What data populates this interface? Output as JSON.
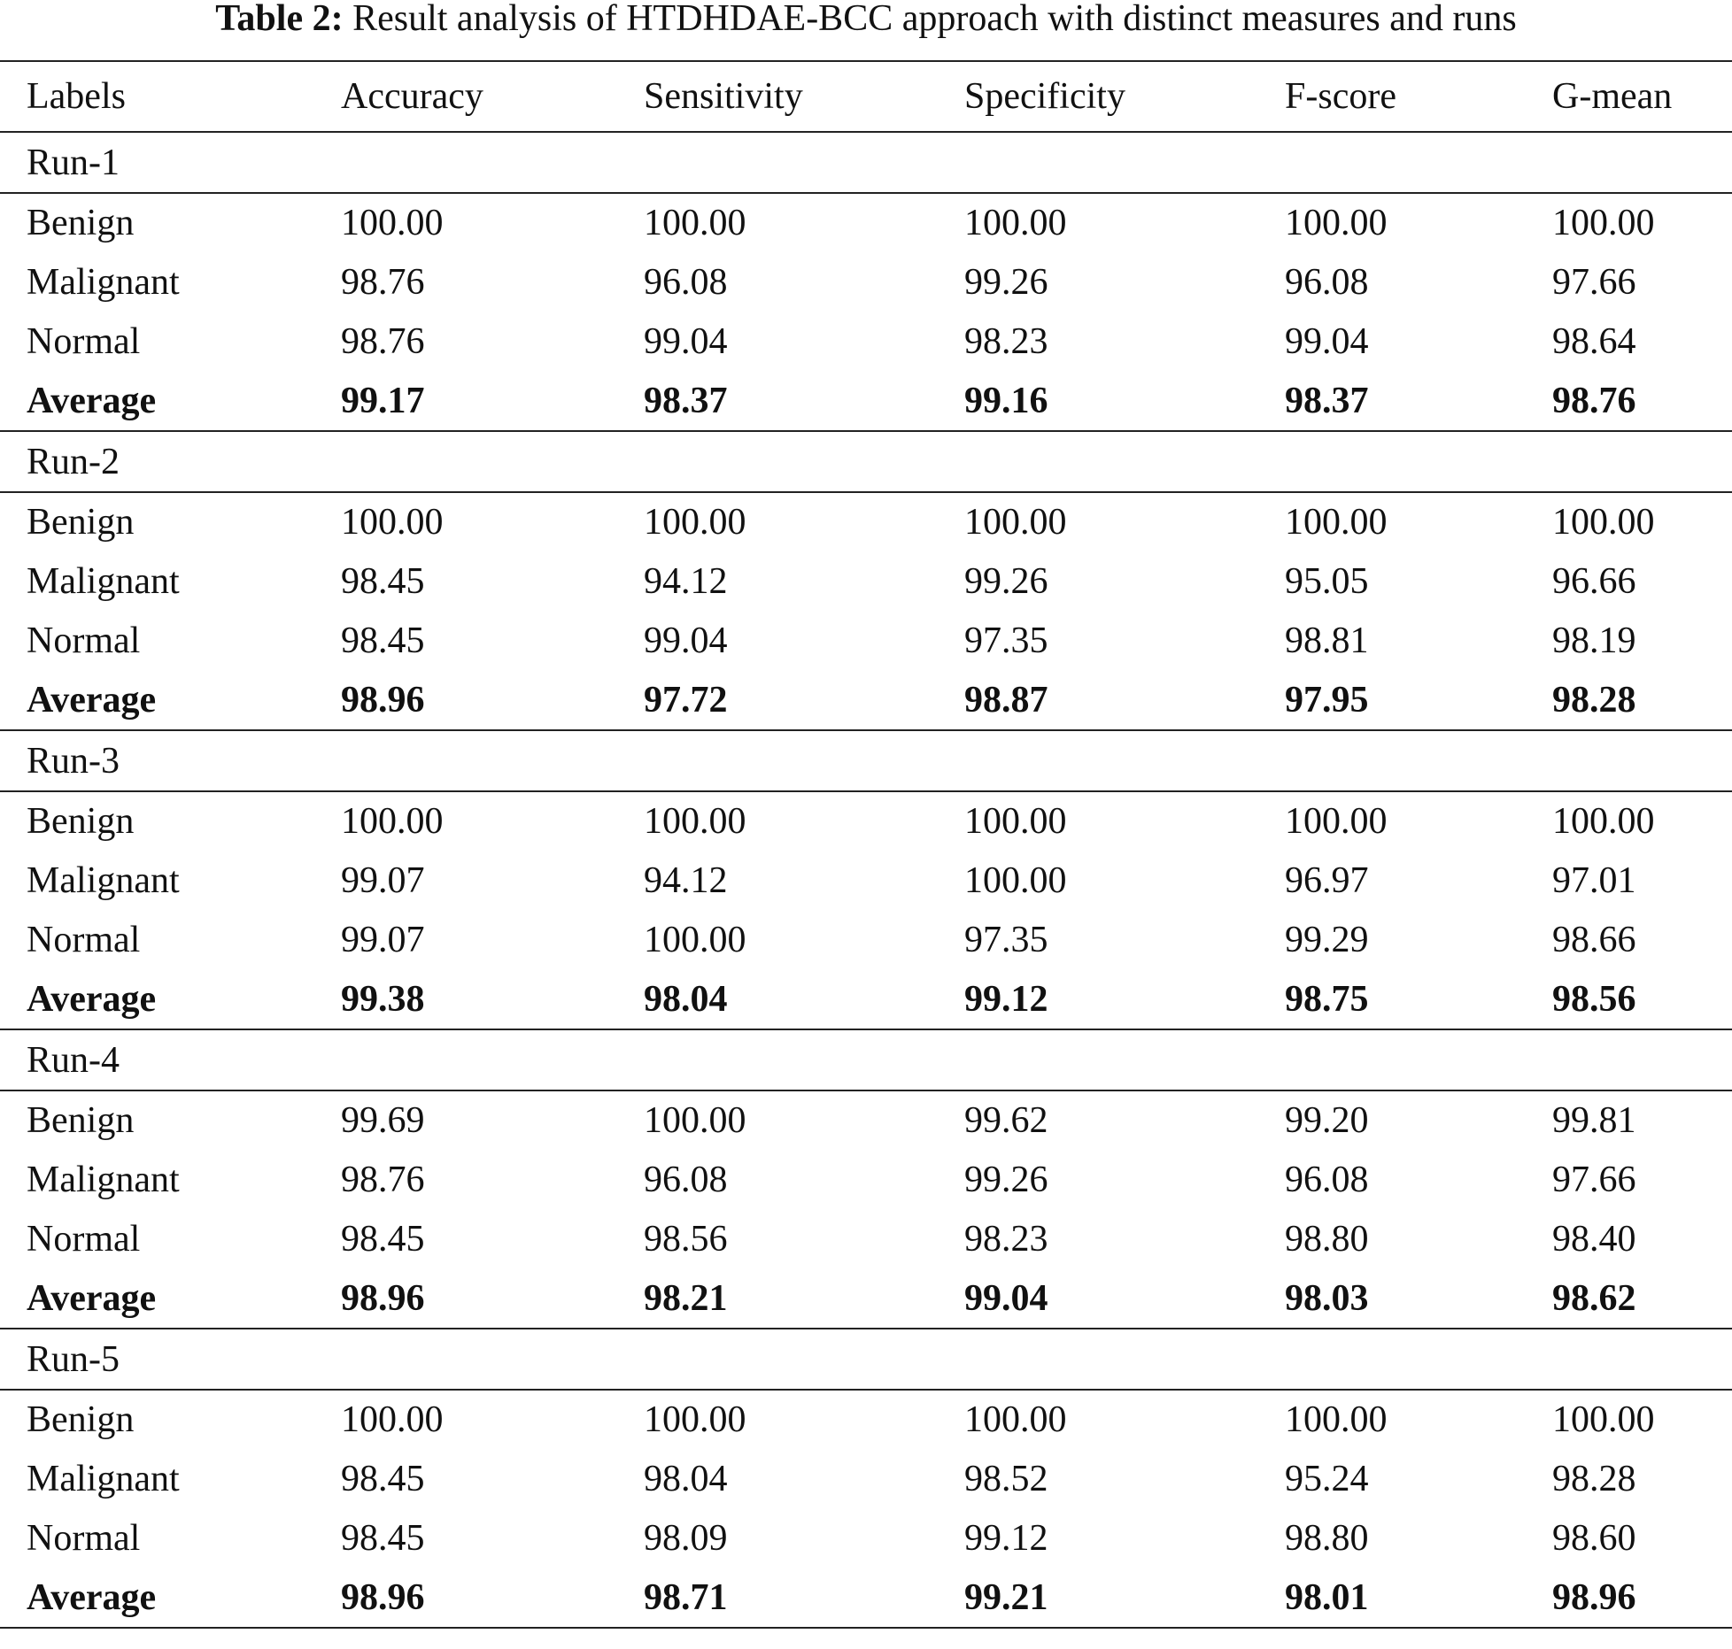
{
  "caption": {
    "label": "Table 2:",
    "text": "Result analysis of HTDHDAE-BCC approach with distinct measures and runs"
  },
  "columns": [
    "Labels",
    "Accuracy",
    "Sensitivity",
    "Specificity",
    "F-score",
    "G-mean"
  ],
  "runs": [
    {
      "name": "Run-1",
      "rows": [
        {
          "label": "Benign",
          "values": [
            "100.00",
            "100.00",
            "100.00",
            "100.00",
            "100.00"
          ]
        },
        {
          "label": "Malignant",
          "values": [
            "98.76",
            "96.08",
            "99.26",
            "96.08",
            "97.66"
          ]
        },
        {
          "label": "Normal",
          "values": [
            "98.76",
            "99.04",
            "98.23",
            "99.04",
            "98.64"
          ]
        },
        {
          "label": "Average",
          "values": [
            "99.17",
            "98.37",
            "99.16",
            "98.37",
            "98.76"
          ]
        }
      ]
    },
    {
      "name": "Run-2",
      "rows": [
        {
          "label": "Benign",
          "values": [
            "100.00",
            "100.00",
            "100.00",
            "100.00",
            "100.00"
          ]
        },
        {
          "label": "Malignant",
          "values": [
            "98.45",
            "94.12",
            "99.26",
            "95.05",
            "96.66"
          ]
        },
        {
          "label": "Normal",
          "values": [
            "98.45",
            "99.04",
            "97.35",
            "98.81",
            "98.19"
          ]
        },
        {
          "label": "Average",
          "values": [
            "98.96",
            "97.72",
            "98.87",
            "97.95",
            "98.28"
          ]
        }
      ]
    },
    {
      "name": "Run-3",
      "rows": [
        {
          "label": "Benign",
          "values": [
            "100.00",
            "100.00",
            "100.00",
            "100.00",
            "100.00"
          ]
        },
        {
          "label": "Malignant",
          "values": [
            "99.07",
            "94.12",
            "100.00",
            "96.97",
            "97.01"
          ]
        },
        {
          "label": "Normal",
          "values": [
            "99.07",
            "100.00",
            "97.35",
            "99.29",
            "98.66"
          ]
        },
        {
          "label": "Average",
          "values": [
            "99.38",
            "98.04",
            "99.12",
            "98.75",
            "98.56"
          ]
        }
      ]
    },
    {
      "name": "Run-4",
      "rows": [
        {
          "label": "Benign",
          "values": [
            "99.69",
            "100.00",
            "99.62",
            "99.20",
            "99.81"
          ]
        },
        {
          "label": "Malignant",
          "values": [
            "98.76",
            "96.08",
            "99.26",
            "96.08",
            "97.66"
          ]
        },
        {
          "label": "Normal",
          "values": [
            "98.45",
            "98.56",
            "98.23",
            "98.80",
            "98.40"
          ]
        },
        {
          "label": "Average",
          "values": [
            "98.96",
            "98.21",
            "99.04",
            "98.03",
            "98.62"
          ]
        }
      ]
    },
    {
      "name": "Run-5",
      "rows": [
        {
          "label": "Benign",
          "values": [
            "100.00",
            "100.00",
            "100.00",
            "100.00",
            "100.00"
          ]
        },
        {
          "label": "Malignant",
          "values": [
            "98.45",
            "98.04",
            "98.52",
            "95.24",
            "98.28"
          ]
        },
        {
          "label": "Normal",
          "values": [
            "98.45",
            "98.09",
            "99.12",
            "98.80",
            "98.60"
          ]
        },
        {
          "label": "Average",
          "values": [
            "98.96",
            "98.71",
            "99.21",
            "98.01",
            "98.96"
          ]
        }
      ]
    }
  ]
}
